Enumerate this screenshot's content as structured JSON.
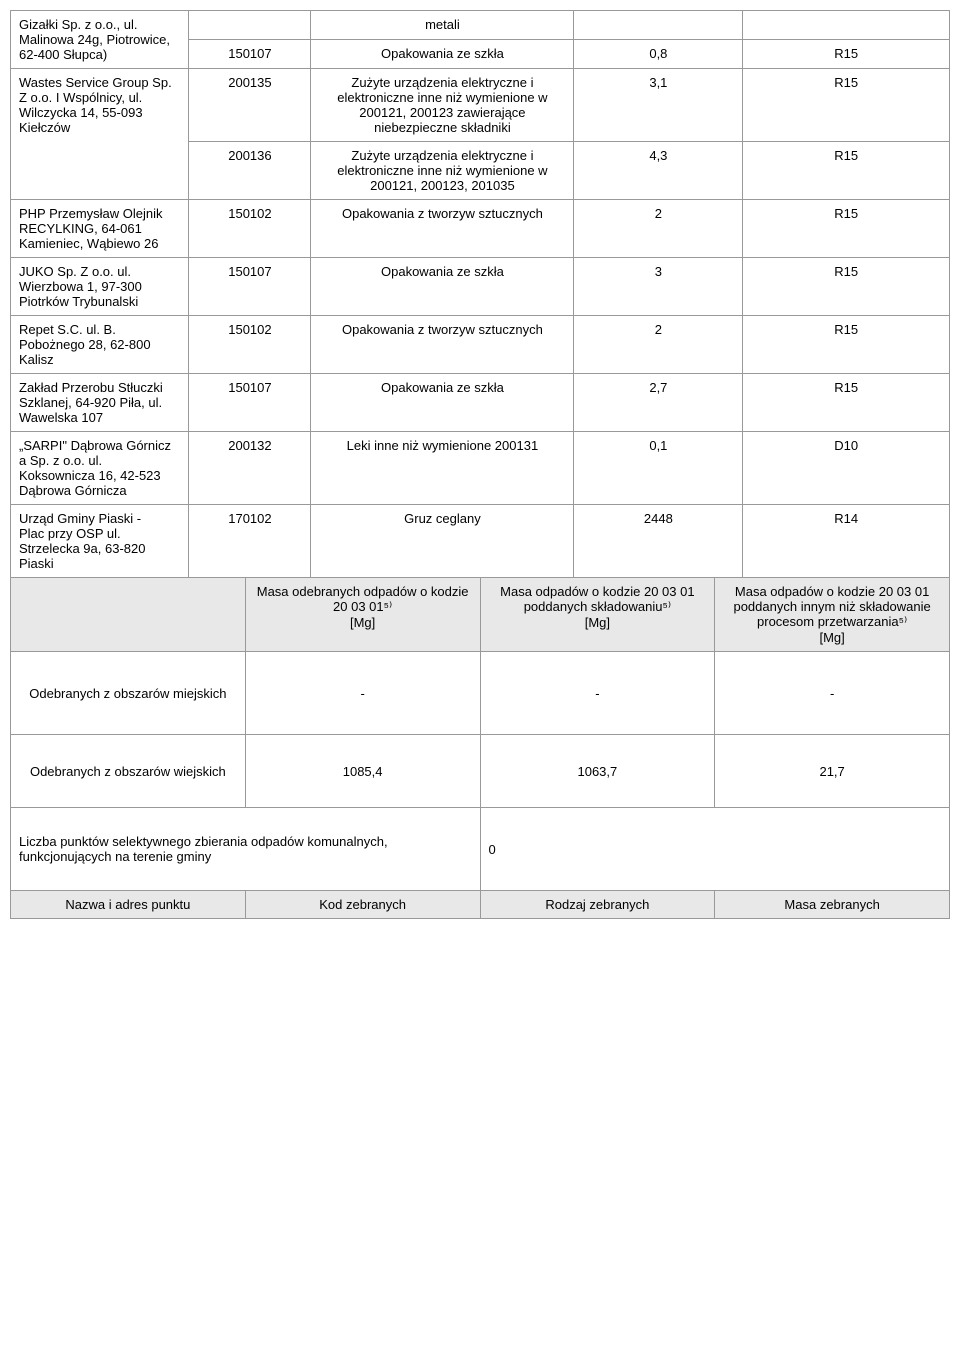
{
  "main_table": {
    "rows": [
      {
        "name": "Gizałki Sp. z o.o., ul. Malinowa 24g, Piotrowice, 62-400 Słupca)",
        "code_rows": [
          {
            "code": "",
            "desc": "metali",
            "mass": "",
            "proc": ""
          },
          {
            "code": "150107",
            "desc": "Opakowania ze szkła",
            "mass": "0,8",
            "proc": "R15"
          }
        ]
      },
      {
        "name": "Wastes Service Group Sp. Z o.o. I Wspólnicy, ul. Wilczycka 14, 55-093 Kiełczów",
        "code_rows": [
          {
            "code": "200135",
            "desc": "Zużyte urządzenia elektryczne i elektroniczne inne niż wymienione w 200121, 200123 zawierające niebezpieczne składniki",
            "mass": "3,1",
            "proc": "R15"
          },
          {
            "code": "200136",
            "desc": "Zużyte urządzenia elektryczne i elektroniczne inne niż wymienione w 200121, 200123, 201035",
            "mass": "4,3",
            "proc": "R15"
          }
        ]
      },
      {
        "name": "PHP Przemysław Olejnik RECYLKING, 64-061 Kamieniec, Wąbiewo 26",
        "code_rows": [
          {
            "code": "150102",
            "desc": "Opakowania z tworzyw sztucznych",
            "mass": "2",
            "proc": "R15"
          }
        ]
      },
      {
        "name": "JUKO Sp. Z o.o. ul. Wierzbowa 1, 97-300 Piotrków Trybunalski",
        "code_rows": [
          {
            "code": "150107",
            "desc": "Opakowania ze szkła",
            "mass": "3",
            "proc": "R15"
          }
        ]
      },
      {
        "name": "Repet S.C. ul. B. Pobożnego 28, 62-800 Kalisz",
        "code_rows": [
          {
            "code": "150102",
            "desc": "Opakowania z tworzyw sztucznych",
            "mass": "2",
            "proc": "R15"
          }
        ]
      },
      {
        "name": "Zakład Przerobu Stłuczki Szklanej, 64-920 Piła, ul. Wawelska 107",
        "code_rows": [
          {
            "code": "150107",
            "desc": "Opakowania ze szkła",
            "mass": "2,7",
            "proc": "R15"
          }
        ]
      },
      {
        "name": "„SARPI\" Dąbrowa Górnicz a Sp. z o.o. ul. Koksownicza 16, 42-523 Dąbrowa Górnicza",
        "code_rows": [
          {
            "code": "200132",
            "desc": "Leki inne niż wymienione 200131",
            "mass": "0,1",
            "proc": "D10"
          }
        ]
      },
      {
        "name": "Urząd Gminy Piaski -\nPlac przy OSP ul. Strzelecka 9a, 63-820 Piaski",
        "code_rows": [
          {
            "code": "170102",
            "desc": "Gruz ceglany",
            "mass": "2448",
            "proc": "R14"
          }
        ]
      }
    ]
  },
  "summary_header": {
    "col1": "",
    "col2": "Masa odebranych odpadów o kodzie 20 03 01⁵⁾\n[Mg]",
    "col3": "Masa odpadów o kodzie 20 03 01 poddanych składowaniu⁵⁾\n[Mg]",
    "col4": "Masa odpadów o kodzie 20 03 01 poddanych innym niż składowanie procesom przetwarzania⁵⁾\n[Mg]"
  },
  "summary_rows": [
    {
      "label": "Odebranych z obszarów miejskich",
      "v1": "-",
      "v2": "-",
      "v3": "-"
    },
    {
      "label": "Odebranych z obszarów wiejskich",
      "v1": "1085,4",
      "v2": "1063,7",
      "v3": "21,7"
    }
  ],
  "points_row": {
    "label": "Liczba punktów selektywnego zbierania odpadów komunalnych, funkcjonujących na terenie gminy",
    "value": "0"
  },
  "footer_header": {
    "c1": "Nazwa i adres punktu",
    "c2": "Kod zebranych",
    "c3": "Rodzaj zebranych",
    "c4": "Masa zebranych"
  }
}
